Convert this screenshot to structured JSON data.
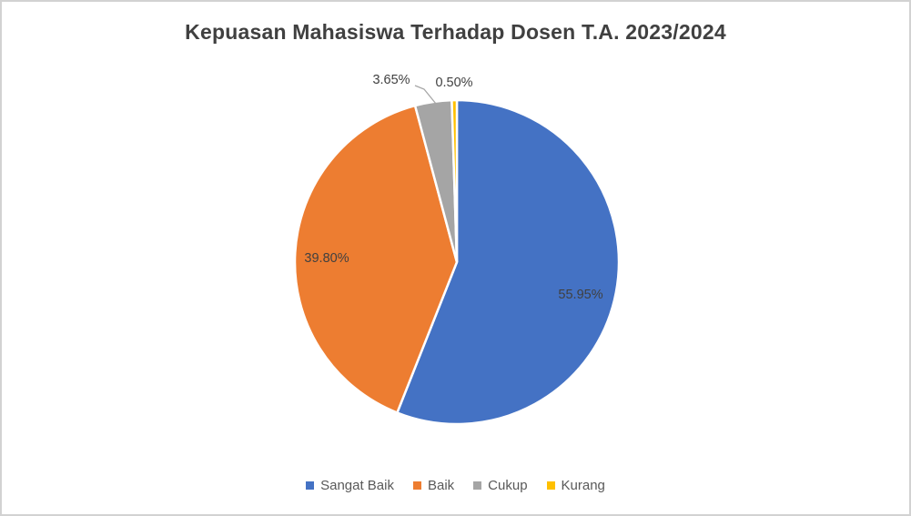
{
  "chart_data": {
    "type": "pie",
    "title": "Kepuasan Mahasiswa Terhadap Dosen T.A. 2023/2024",
    "categories": [
      "Sangat Baik",
      "Baik",
      "Cukup",
      "Kurang"
    ],
    "values": [
      55.95,
      39.8,
      3.65,
      0.5
    ],
    "data_labels": [
      "55.95%",
      "39.80%",
      "3.65%",
      "0.50%"
    ],
    "colors": [
      "#4472C4",
      "#ED7D31",
      "#A5A5A5",
      "#FFC000"
    ],
    "legend_position": "bottom",
    "start_angle_deg": 0,
    "direction": "clockwise",
    "slice_border_color": "#FFFFFF",
    "leader_line_color": "#A6A6A6",
    "title_color": "#404040",
    "data_label_color": "#404040",
    "legend_text_color": "#595959"
  }
}
